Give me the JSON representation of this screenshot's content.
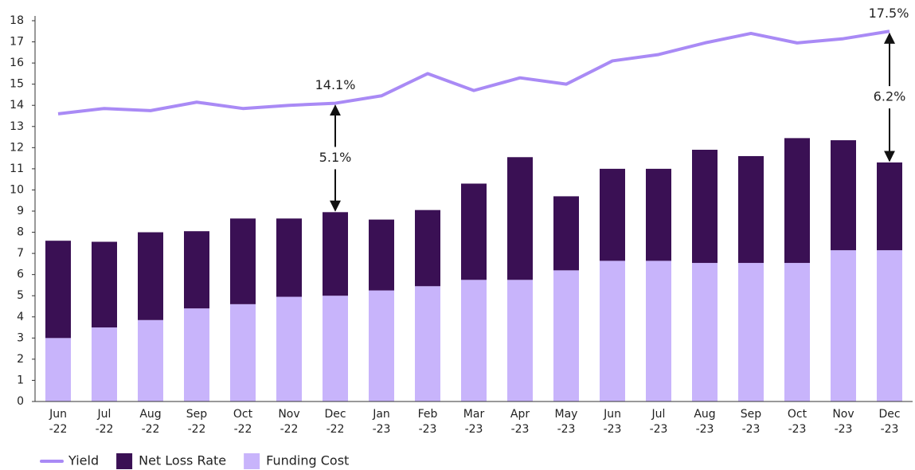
{
  "chart_data": {
    "type": "bar",
    "categories": [
      "Jun-22",
      "Jul-22",
      "Aug-22",
      "Sep-22",
      "Oct-22",
      "Nov-22",
      "Dec-22",
      "Jan-23",
      "Feb-23",
      "Mar-23",
      "Apr-23",
      "May-23",
      "Jun-23",
      "Jul-23",
      "Aug-23",
      "Sep-23",
      "Oct-23",
      "Nov-23",
      "Dec-23"
    ],
    "series": [
      {
        "name": "Yield",
        "type": "line",
        "color": "#a98af5",
        "values": [
          13.6,
          13.85,
          13.75,
          14.15,
          13.85,
          14.0,
          14.1,
          14.45,
          15.5,
          14.7,
          15.3,
          15.0,
          16.1,
          16.4,
          16.95,
          17.4,
          16.95,
          17.15,
          17.5
        ],
        "value_labels": [
          null,
          null,
          null,
          null,
          null,
          null,
          "14.1%",
          null,
          null,
          null,
          null,
          null,
          null,
          null,
          null,
          null,
          null,
          null,
          "17.5%"
        ]
      },
      {
        "name": "Net Loss Rate",
        "type": "bar",
        "color": "#3a1054",
        "values": [
          4.6,
          4.05,
          4.15,
          3.65,
          4.05,
          3.7,
          3.95,
          3.35,
          3.6,
          4.55,
          5.8,
          3.5,
          4.35,
          4.35,
          5.35,
          5.05,
          5.9,
          5.2,
          4.15
        ]
      },
      {
        "name": "Funding Cost",
        "type": "bar",
        "color": "#c8b4fb",
        "values": [
          3.0,
          3.5,
          3.85,
          4.4,
          4.6,
          4.95,
          5.0,
          5.25,
          5.45,
          5.75,
          5.75,
          6.2,
          6.65,
          6.65,
          6.55,
          6.55,
          6.55,
          7.15,
          7.15
        ]
      }
    ],
    "annotations": [
      {
        "text": "5.1%",
        "category": "Dec-22"
      },
      {
        "text": "6.2%",
        "category": "Dec-23"
      }
    ],
    "ylim": [
      0,
      18
    ],
    "yticks": [
      0,
      1,
      2,
      3,
      4,
      5,
      6,
      7,
      8,
      9,
      10,
      11,
      12,
      13,
      14,
      15,
      16,
      17,
      18
    ],
    "grid": false,
    "legend": "bottom-left"
  }
}
